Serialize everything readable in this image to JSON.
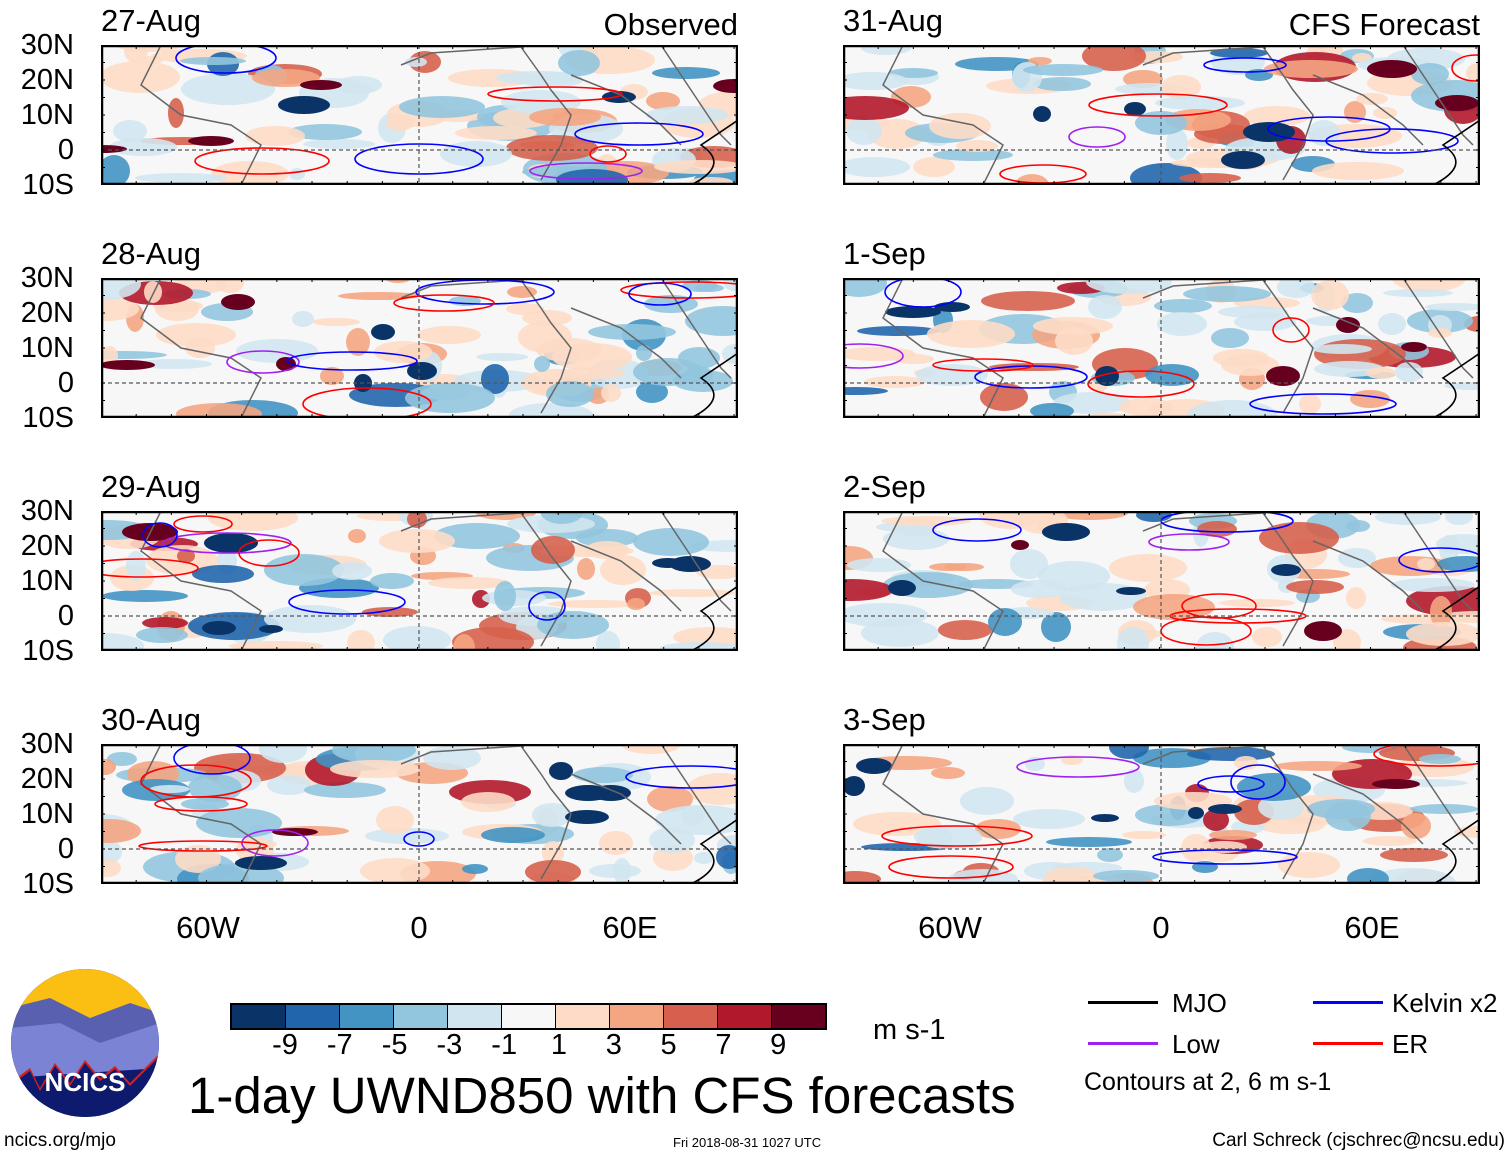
{
  "panels": [
    {
      "date": "27-Aug",
      "label": "Observed",
      "group": "observed"
    },
    {
      "date": "28-Aug",
      "label": "",
      "group": "observed"
    },
    {
      "date": "29-Aug",
      "label": "",
      "group": "observed"
    },
    {
      "date": "30-Aug",
      "label": "",
      "group": "observed"
    },
    {
      "date": "31-Aug",
      "label": "CFS Forecast",
      "group": "forecast"
    },
    {
      "date": "1-Sep",
      "label": "",
      "group": "forecast"
    },
    {
      "date": "2-Sep",
      "label": "",
      "group": "forecast"
    },
    {
      "date": "3-Sep",
      "label": "",
      "group": "forecast"
    }
  ],
  "lat_labels": [
    "30N",
    "20N",
    "10N",
    "0",
    "10S"
  ],
  "lon_labels": [
    "60W",
    "0",
    "60E"
  ],
  "colorbar": {
    "labels": [
      "-9",
      "-7",
      "-5",
      "-3",
      "-1",
      "1",
      "3",
      "5",
      "7",
      "9"
    ],
    "colors": [
      "#0a3468",
      "#2166ac",
      "#4393c3",
      "#92c5de",
      "#d1e5f0",
      "#f7f7f7",
      "#fddbc7",
      "#f4a582",
      "#d6604d",
      "#b2182b",
      "#67001f"
    ],
    "units": "m s-1"
  },
  "legend": {
    "items": [
      {
        "label": "MJO",
        "color": "#000000"
      },
      {
        "label": "Kelvin x2",
        "color": "#0000ff"
      },
      {
        "label": "Low",
        "color": "#a020f0"
      },
      {
        "label": "ER",
        "color": "#ff0000"
      }
    ],
    "note": "Contours at 2, 6 m s-1"
  },
  "title": "1-day UWND850 with CFS forecasts",
  "logo_text": "NCICS",
  "footer": {
    "left": "ncics.org/mjo",
    "center": "Fri 2018-08-31 1027 UTC",
    "right": "Carl Schreck (cjschrec@ncsu.edu)"
  }
}
